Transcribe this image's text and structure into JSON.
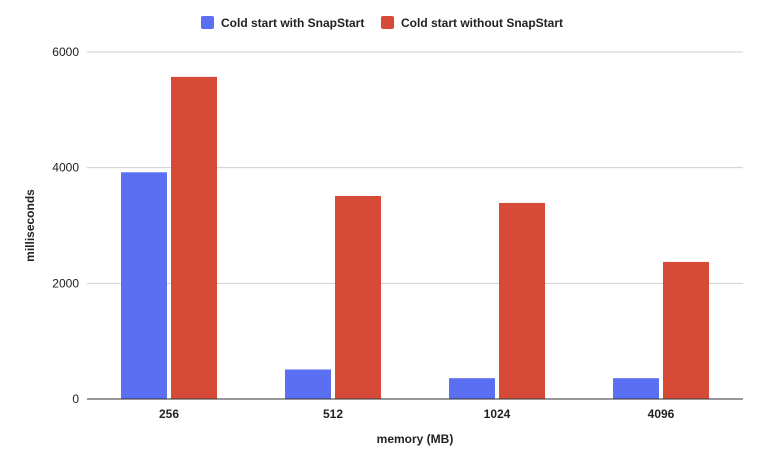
{
  "chart_data": {
    "type": "bar",
    "categories": [
      "256",
      "512",
      "1024",
      "4096"
    ],
    "series": [
      {
        "name": "Cold start with SnapStart",
        "color": "#5b6ff2",
        "values": [
          3920,
          510,
          360,
          360
        ]
      },
      {
        "name": "Cold start without SnapStart",
        "color": "#d64a37",
        "values": [
          5570,
          3510,
          3390,
          2370
        ]
      }
    ],
    "title": "",
    "xlabel": "memory (MB)",
    "ylabel": "milliseconds",
    "ylim": [
      0,
      6000
    ],
    "yticks": [
      0,
      2000,
      4000,
      6000
    ],
    "grid": true,
    "legend_position": "top"
  }
}
